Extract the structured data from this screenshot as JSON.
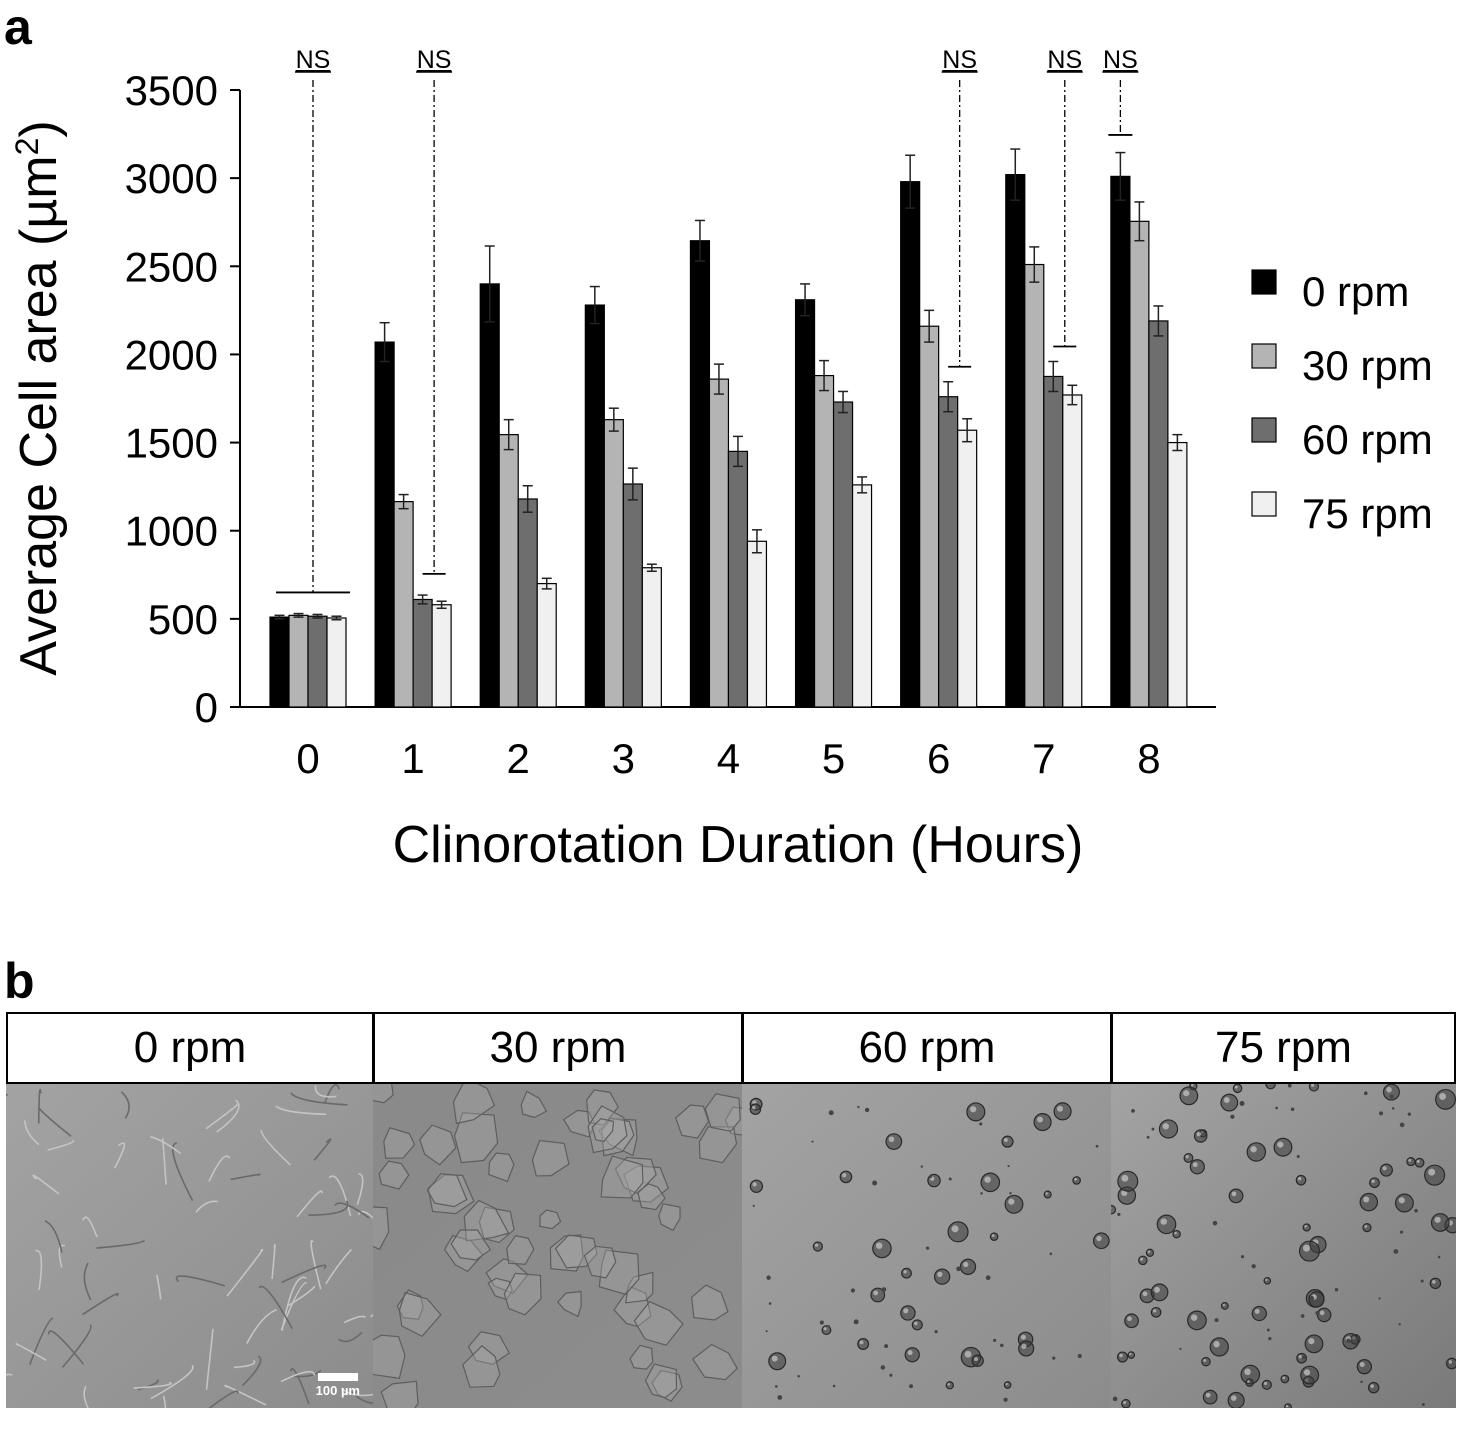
{
  "panel_a_label": "a",
  "panel_b_label": "b",
  "chart_data": {
    "type": "bar",
    "categories": [
      "0",
      "1",
      "2",
      "3",
      "4",
      "5",
      "6",
      "7",
      "8"
    ],
    "series": [
      {
        "name": "0 rpm",
        "color": "#000000",
        "values": [
          510,
          2070,
          2400,
          2280,
          2645,
          2310,
          2980,
          3020,
          3010
        ],
        "errors": [
          10,
          110,
          215,
          105,
          115,
          90,
          150,
          145,
          135
        ]
      },
      {
        "name": "30 rpm",
        "color": "#b4b4b4",
        "values": [
          520,
          1165,
          1545,
          1630,
          1860,
          1880,
          2160,
          2510,
          2755
        ],
        "errors": [
          10,
          40,
          85,
          65,
          85,
          85,
          90,
          100,
          110
        ]
      },
      {
        "name": "60 rpm",
        "color": "#6e6e6e",
        "values": [
          515,
          610,
          1180,
          1265,
          1450,
          1730,
          1760,
          1875,
          2190
        ],
        "errors": [
          10,
          25,
          75,
          90,
          85,
          60,
          85,
          85,
          85
        ]
      },
      {
        "name": "75 rpm",
        "color": "#f0f0f0",
        "values": [
          505,
          580,
          700,
          790,
          940,
          1260,
          1570,
          1770,
          1500
        ],
        "errors": [
          10,
          20,
          30,
          20,
          65,
          45,
          65,
          55,
          45
        ]
      }
    ],
    "ylabel": "Average Cell area (µm²)",
    "xlabel": "Clinorotation  Duration (Hours)",
    "ylim": [
      0,
      3500
    ],
    "yticks": [
      0,
      500,
      1000,
      1500,
      2000,
      2500,
      3000,
      3500
    ],
    "legend_position": "right",
    "annotations": [
      {
        "category": "0",
        "label": "NS",
        "span": "all",
        "level": 650
      },
      {
        "category": "1",
        "label": "NS",
        "span": "last2",
        "level": 755
      },
      {
        "category": "6",
        "label": "NS",
        "span": "last2",
        "level": 1930
      },
      {
        "category": "7",
        "label": "NS",
        "span": "last2",
        "level": 2045
      },
      {
        "category": "8",
        "label": "NS",
        "span": "first",
        "level": 3245
      }
    ]
  },
  "micrographs": [
    {
      "label": "0 rpm",
      "scalebar": "100 µm"
    },
    {
      "label": "30 rpm"
    },
    {
      "label": "60 rpm"
    },
    {
      "label": "75 rpm"
    }
  ]
}
